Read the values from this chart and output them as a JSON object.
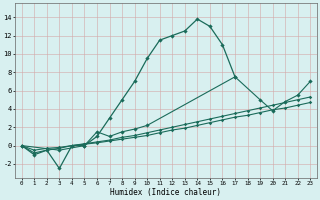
{
  "line1_x": [
    0,
    1,
    2,
    3,
    4,
    5,
    6,
    7,
    8,
    9,
    10,
    11,
    12,
    13,
    14,
    15,
    16,
    17
  ],
  "line1_y": [
    0,
    -1,
    -0.5,
    -2.5,
    0,
    0,
    1,
    3,
    5,
    7,
    9.5,
    11.5,
    12,
    12.5,
    13.8,
    13,
    11,
    7.5
  ],
  "line2_x": [
    0,
    1,
    2,
    3,
    4,
    5,
    6,
    7,
    8,
    9,
    10,
    11,
    12,
    13,
    14,
    15,
    16,
    17,
    18,
    19,
    20,
    21,
    22,
    23
  ],
  "line2_y": [
    0,
    -0.5,
    -0.3,
    -0.2,
    0,
    0.2,
    0.4,
    0.6,
    0.9,
    1.1,
    1.4,
    1.7,
    2.0,
    2.3,
    2.6,
    2.9,
    3.2,
    3.5,
    3.8,
    4.1,
    4.4,
    4.7,
    5.0,
    5.3
  ],
  "line3_x": [
    0,
    1,
    2,
    3,
    4,
    5,
    6,
    7,
    8,
    9,
    10,
    11,
    12,
    13,
    14,
    15,
    16,
    17,
    18,
    19,
    20,
    21,
    22,
    23
  ],
  "line3_y": [
    0,
    -0.8,
    -0.5,
    -0.3,
    0,
    0.15,
    0.3,
    0.5,
    0.7,
    0.9,
    1.1,
    1.4,
    1.7,
    1.9,
    2.2,
    2.5,
    2.8,
    3.1,
    3.3,
    3.6,
    3.9,
    4.1,
    4.4,
    4.7
  ],
  "line4_x": [
    0,
    3,
    5,
    6,
    7,
    8,
    9,
    10,
    17,
    19,
    20,
    21,
    22,
    23
  ],
  "line4_y": [
    0,
    -0.5,
    0,
    1.5,
    1,
    1.5,
    1.8,
    2.2,
    7.5,
    5,
    3.8,
    4.8,
    5.5,
    7
  ],
  "line_color": "#1a6b5a",
  "bg_color": "#d8f0f0",
  "grid_minor_color": "#e8c8c8",
  "grid_major_color": "#e8c8c8",
  "xlabel": "Humidex (Indice chaleur)",
  "xlim": [
    -0.5,
    23.5
  ],
  "ylim": [
    -3.5,
    15.5
  ],
  "yticks": [
    -2,
    0,
    2,
    4,
    6,
    8,
    10,
    12,
    14
  ],
  "xticks": [
    0,
    1,
    2,
    3,
    4,
    5,
    6,
    7,
    8,
    9,
    10,
    11,
    12,
    13,
    14,
    15,
    16,
    17,
    18,
    19,
    20,
    21,
    22,
    23
  ]
}
